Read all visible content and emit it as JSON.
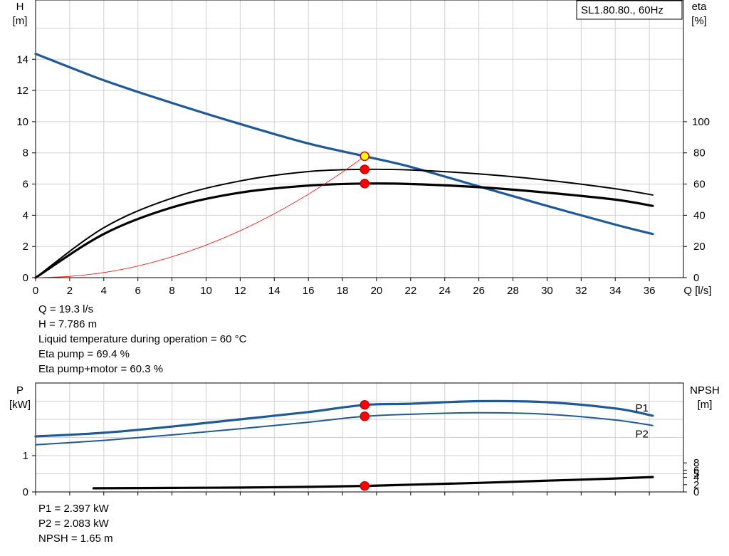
{
  "chart_data": [
    {
      "type": "line",
      "title": "SL1.80.80., 60Hz",
      "xlabel": "Q [l/s]",
      "ylabel_left": [
        "H",
        "[m]"
      ],
      "ylabel_right": [
        "eta",
        "[%]"
      ],
      "xlim": [
        0,
        38
      ],
      "x_ticks": [
        0,
        2,
        4,
        6,
        8,
        10,
        12,
        14,
        16,
        18,
        20,
        22,
        24,
        26,
        28,
        30,
        32,
        34,
        36
      ],
      "ylim_left": [
        0,
        17.8
      ],
      "y_ticks_left": [
        0,
        2,
        4,
        6,
        8,
        10,
        12,
        14
      ],
      "ylim_right": [
        0,
        178
      ],
      "y_ticks_right": [
        0,
        20,
        40,
        60,
        80,
        100
      ],
      "grid": true,
      "series": [
        {
          "axis": "left",
          "color": "#1f5a96",
          "points": [
            [
              0,
              14.35
            ],
            [
              4,
              12.65
            ],
            [
              8,
              11.2
            ],
            [
              12,
              9.85
            ],
            [
              16,
              8.6
            ],
            [
              19.3,
              7.786
            ],
            [
              22,
              7.1
            ],
            [
              26,
              5.85
            ],
            [
              30,
              4.6
            ],
            [
              34,
              3.4
            ],
            [
              36.2,
              2.8
            ]
          ]
        },
        {
          "axis": "right",
          "color": "#000000",
          "points": [
            [
              0,
              0
            ],
            [
              4,
              32
            ],
            [
              8,
              51
            ],
            [
              12,
              62
            ],
            [
              16,
              68
            ],
            [
              19.3,
              69.4
            ],
            [
              22,
              69
            ],
            [
              26,
              66.5
            ],
            [
              30,
              62.5
            ],
            [
              34,
              57
            ],
            [
              36.2,
              53
            ]
          ]
        },
        {
          "axis": "right",
          "color": "#000000",
          "thick": true,
          "points": [
            [
              0,
              0
            ],
            [
              4,
              28
            ],
            [
              8,
              45
            ],
            [
              12,
              54.5
            ],
            [
              16,
              59
            ],
            [
              19.3,
              60.3
            ],
            [
              22,
              60
            ],
            [
              26,
              58
            ],
            [
              30,
              54.5
            ],
            [
              34,
              50
            ],
            [
              36.2,
              46
            ]
          ]
        },
        {
          "axis": "left",
          "color": "#ff0000",
          "thin": true,
          "points": [
            [
              0,
              0
            ],
            [
              2,
              0.08
            ],
            [
              4,
              0.33
            ],
            [
              6,
              0.75
            ],
            [
              8,
              1.34
            ],
            [
              10,
              2.09
            ],
            [
              12,
              3.01
            ],
            [
              14,
              4.1
            ],
            [
              16,
              5.35
            ],
            [
              18,
              6.77
            ],
            [
              19.3,
              7.786
            ]
          ]
        }
      ],
      "markers": [
        {
          "axis": "left",
          "x": 19.3,
          "y": 7.786,
          "fill": "#ffff00",
          "stroke": "#cc0000"
        },
        {
          "axis": "right",
          "x": 19.3,
          "y": 69.4,
          "fill": "#ff0000",
          "stroke": "#cc0000"
        },
        {
          "axis": "right",
          "x": 19.3,
          "y": 60.3,
          "fill": "#ff0000",
          "stroke": "#cc0000"
        }
      ]
    },
    {
      "type": "line",
      "ylabel_left": [
        "P",
        "[kW]"
      ],
      "ylabel_right": [
        "NPSH",
        "[m]"
      ],
      "xlim": [
        0,
        38
      ],
      "ylim_left": [
        0,
        3
      ],
      "y_ticks_left": [
        0,
        1
      ],
      "ylim_right": [
        0,
        30
      ],
      "y_ticks_right": [
        0,
        2,
        4,
        5,
        6,
        8
      ],
      "grid": true,
      "series": [
        {
          "name": "P1",
          "axis": "left",
          "color": "#1f5a96",
          "thick": true,
          "points": [
            [
              0,
              1.53
            ],
            [
              4,
              1.63
            ],
            [
              8,
              1.8
            ],
            [
              12,
              2.0
            ],
            [
              16,
              2.2
            ],
            [
              19.3,
              2.397
            ],
            [
              22,
              2.43
            ],
            [
              26,
              2.5
            ],
            [
              30,
              2.47
            ],
            [
              34,
              2.3
            ],
            [
              36.2,
              2.1
            ]
          ]
        },
        {
          "name": "P2",
          "axis": "left",
          "color": "#1f5a96",
          "points": [
            [
              0,
              1.3
            ],
            [
              4,
              1.42
            ],
            [
              8,
              1.57
            ],
            [
              12,
              1.74
            ],
            [
              16,
              1.92
            ],
            [
              19.3,
              2.083
            ],
            [
              22,
              2.14
            ],
            [
              26,
              2.18
            ],
            [
              30,
              2.14
            ],
            [
              34,
              1.98
            ],
            [
              36.2,
              1.83
            ]
          ]
        },
        {
          "axis": "right",
          "color": "#000000",
          "thick": true,
          "points": [
            [
              3.4,
              1.0
            ],
            [
              8,
              1.1
            ],
            [
              12,
              1.2
            ],
            [
              16,
              1.4
            ],
            [
              19.3,
              1.65
            ],
            [
              22,
              2.0
            ],
            [
              26,
              2.5
            ],
            [
              30,
              3.1
            ],
            [
              34,
              3.7
            ],
            [
              36.2,
              4.1
            ]
          ]
        }
      ],
      "markers": [
        {
          "axis": "left",
          "x": 19.3,
          "y": 2.397,
          "fill": "#ff0000",
          "stroke": "#cc0000"
        },
        {
          "axis": "left",
          "x": 19.3,
          "y": 2.083,
          "fill": "#ff0000",
          "stroke": "#cc0000"
        },
        {
          "axis": "right",
          "x": 19.3,
          "y": 1.65,
          "fill": "#ff0000",
          "stroke": "#cc0000"
        }
      ]
    }
  ],
  "info_top": [
    "Q = 19.3 l/s",
    "H = 7.786 m",
    "Liquid temperature during operation = 60 °C",
    "Eta pump = 69.4 %",
    "Eta pump+motor = 60.3 %"
  ],
  "info_bottom": [
    "P1 = 2.397 kW",
    "P2 = 2.083 kW",
    "NPSH = 1.65 m"
  ]
}
